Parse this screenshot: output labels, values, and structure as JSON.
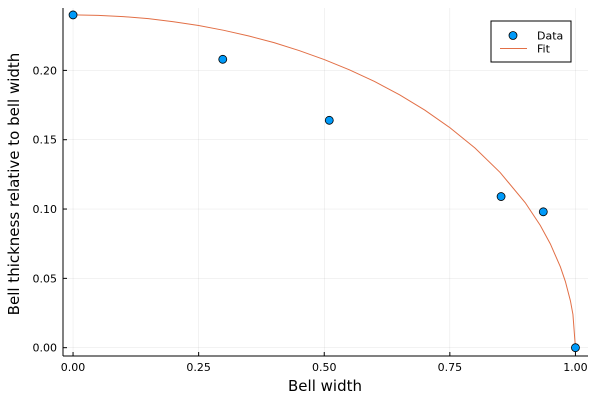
{
  "chart_data": {
    "type": "scatter",
    "xlabel": "Bell width",
    "ylabel": "Bell thickness relative to bell width",
    "xlim": [
      -0.02,
      1.025
    ],
    "ylim": [
      -0.006,
      0.245
    ],
    "x_ticks": [
      {
        "value": 0.0,
        "label": "0.00"
      },
      {
        "value": 0.25,
        "label": "0.25"
      },
      {
        "value": 0.5,
        "label": "0.50"
      },
      {
        "value": 0.75,
        "label": "0.75"
      },
      {
        "value": 1.0,
        "label": "1.00"
      }
    ],
    "y_ticks": [
      {
        "value": 0.0,
        "label": "0.00"
      },
      {
        "value": 0.05,
        "label": "0.05"
      },
      {
        "value": 0.1,
        "label": "0.10"
      },
      {
        "value": 0.15,
        "label": "0.15"
      },
      {
        "value": 0.2,
        "label": "0.20"
      }
    ],
    "grid": true,
    "legend_position": "top-right",
    "series": [
      {
        "name": "Data",
        "kind": "scatter",
        "color": "#009af9",
        "points": [
          {
            "x": 0.0,
            "y": 0.24
          },
          {
            "x": 0.298,
            "y": 0.208
          },
          {
            "x": 0.51,
            "y": 0.164
          },
          {
            "x": 0.852,
            "y": 0.109
          },
          {
            "x": 0.936,
            "y": 0.098
          },
          {
            "x": 1.0,
            "y": 0.0
          }
        ]
      },
      {
        "name": "Fit",
        "kind": "line",
        "color": "#e26f46",
        "points": [
          {
            "x": 0.0,
            "y": 0.24
          },
          {
            "x": 0.05,
            "y": 0.2397
          },
          {
            "x": 0.1,
            "y": 0.2388
          },
          {
            "x": 0.15,
            "y": 0.2373
          },
          {
            "x": 0.2,
            "y": 0.2351
          },
          {
            "x": 0.25,
            "y": 0.2324
          },
          {
            "x": 0.3,
            "y": 0.2289
          },
          {
            "x": 0.35,
            "y": 0.2248
          },
          {
            "x": 0.4,
            "y": 0.22
          },
          {
            "x": 0.45,
            "y": 0.2143
          },
          {
            "x": 0.5,
            "y": 0.2078
          },
          {
            "x": 0.55,
            "y": 0.2004
          },
          {
            "x": 0.6,
            "y": 0.192
          },
          {
            "x": 0.65,
            "y": 0.1824
          },
          {
            "x": 0.7,
            "y": 0.1714
          },
          {
            "x": 0.75,
            "y": 0.1587
          },
          {
            "x": 0.8,
            "y": 0.144
          },
          {
            "x": 0.85,
            "y": 0.1264
          },
          {
            "x": 0.9,
            "y": 0.1046
          },
          {
            "x": 0.93,
            "y": 0.0882
          },
          {
            "x": 0.95,
            "y": 0.0749
          },
          {
            "x": 0.97,
            "y": 0.0583
          },
          {
            "x": 0.98,
            "y": 0.0477
          },
          {
            "x": 0.99,
            "y": 0.0338
          },
          {
            "x": 0.995,
            "y": 0.024
          },
          {
            "x": 1.0,
            "y": 0.0
          }
        ]
      }
    ]
  }
}
